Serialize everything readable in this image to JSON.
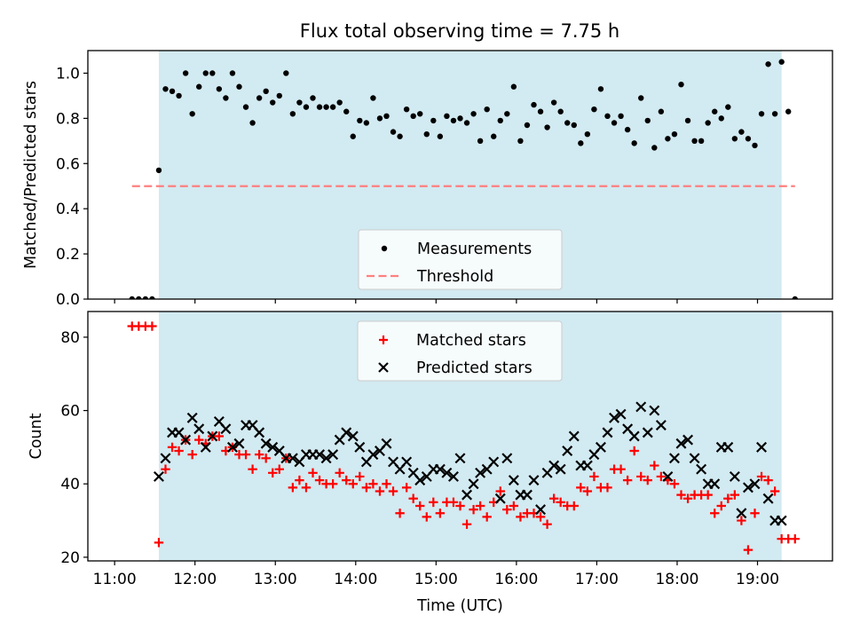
{
  "figure": {
    "title": "Flux total observing time = 7.75 h"
  },
  "colors": {
    "observing_band": "#add8e6",
    "measurement": "#000000",
    "threshold": "#ff7f7f",
    "matched": "#ff0000",
    "predicted": "#000000"
  },
  "chart_data": [
    {
      "type": "scatter",
      "name": "ratio-panel",
      "ylabel": "Matched/Predicted stars",
      "xlabel": "",
      "ylim": [
        0,
        1.1
      ],
      "yticks": [
        0.0,
        0.2,
        0.4,
        0.6,
        0.8,
        1.0
      ],
      "ytick_labels": [
        "0.0",
        "0.2",
        "0.4",
        "0.6",
        "0.8",
        "1.0"
      ],
      "xticks_hours": [
        11,
        12,
        13,
        14,
        15,
        16,
        17,
        18,
        19
      ],
      "observing_band": [
        "11:33",
        "19:18"
      ],
      "threshold": 0.5,
      "threshold_range": [
        "11:13",
        "19:28"
      ],
      "legend": {
        "placement": "lower center",
        "entries": [
          "Measurements",
          "Threshold"
        ]
      },
      "series": [
        {
          "name": "Measurements",
          "x": [
            "11:13",
            "11:18",
            "11:23",
            "11:28",
            "11:33",
            "11:38",
            "11:43",
            "11:48",
            "11:53",
            "11:58",
            "12:03",
            "12:08",
            "12:13",
            "12:18",
            "12:23",
            "12:28",
            "12:33",
            "12:38",
            "12:43",
            "12:48",
            "12:53",
            "12:58",
            "13:03",
            "13:08",
            "13:13",
            "13:18",
            "13:23",
            "13:28",
            "13:33",
            "13:38",
            "13:43",
            "13:48",
            "13:53",
            "13:58",
            "14:03",
            "14:08",
            "14:13",
            "14:18",
            "14:23",
            "14:28",
            "14:33",
            "14:38",
            "14:43",
            "14:48",
            "14:53",
            "14:58",
            "15:03",
            "15:08",
            "15:13",
            "15:18",
            "15:23",
            "15:28",
            "15:33",
            "15:38",
            "15:43",
            "15:48",
            "15:53",
            "15:58",
            "16:03",
            "16:08",
            "16:13",
            "16:18",
            "16:23",
            "16:28",
            "16:33",
            "16:38",
            "16:43",
            "16:48",
            "16:53",
            "16:58",
            "17:03",
            "17:08",
            "17:13",
            "17:18",
            "17:23",
            "17:28",
            "17:33",
            "17:38",
            "17:43",
            "17:48",
            "17:53",
            "17:58",
            "18:03",
            "18:08",
            "18:13",
            "18:18",
            "18:23",
            "18:28",
            "18:33",
            "18:38",
            "18:43",
            "18:48",
            "18:53",
            "18:58",
            "19:03",
            "19:08",
            "19:13",
            "19:18",
            "19:23",
            "19:28"
          ],
          "values": [
            0,
            0,
            0,
            0,
            0.57,
            0.93,
            0.92,
            0.9,
            1.0,
            0.82,
            0.94,
            1.0,
            1.0,
            0.93,
            0.89,
            1.0,
            0.94,
            0.85,
            0.78,
            0.89,
            0.92,
            0.87,
            0.9,
            1.0,
            0.82,
            0.87,
            0.85,
            0.89,
            0.85,
            0.85,
            0.85,
            0.87,
            0.83,
            0.72,
            0.79,
            0.78,
            0.89,
            0.8,
            0.81,
            0.74,
            0.72,
            0.84,
            0.81,
            0.82,
            0.73,
            0.79,
            0.72,
            0.81,
            0.79,
            0.8,
            0.78,
            0.82,
            0.7,
            0.84,
            0.72,
            0.79,
            0.82,
            0.94,
            0.7,
            0.77,
            0.86,
            0.83,
            0.76,
            0.87,
            0.83,
            0.78,
            0.77,
            0.69,
            0.73,
            0.84,
            0.93,
            0.81,
            0.78,
            0.81,
            0.75,
            0.69,
            0.89,
            0.79,
            0.67,
            0.83,
            0.71,
            0.73,
            0.95,
            0.79,
            0.7,
            0.7,
            0.78,
            0.83,
            0.8,
            0.85,
            0.71,
            0.74,
            0.71,
            0.68,
            0.82,
            1.04,
            0.82,
            1.05,
            0.83,
            0
          ]
        }
      ]
    },
    {
      "type": "scatter",
      "name": "count-panel",
      "ylabel": "Count",
      "xlabel": "Time (UTC)",
      "ylim": [
        19,
        87
      ],
      "yticks": [
        20,
        40,
        60,
        80
      ],
      "ytick_labels": [
        "20",
        "40",
        "60",
        "80"
      ],
      "xticks_hours": [
        11,
        12,
        13,
        14,
        15,
        16,
        17,
        18,
        19
      ],
      "xtick_labels": [
        "11:00",
        "12:00",
        "13:00",
        "14:00",
        "15:00",
        "16:00",
        "17:00",
        "18:00",
        "19:00"
      ],
      "observing_band": [
        "11:33",
        "19:18"
      ],
      "legend": {
        "placement": "upper center",
        "entries": [
          "Matched stars",
          "Predicted stars"
        ]
      },
      "series": [
        {
          "name": "Matched stars",
          "marker": "plus",
          "x": [
            "11:13",
            "11:18",
            "11:23",
            "11:28",
            "11:33",
            "11:38",
            "11:43",
            "11:48",
            "11:53",
            "11:58",
            "12:03",
            "12:08",
            "12:13",
            "12:18",
            "12:23",
            "12:28",
            "12:33",
            "12:38",
            "12:43",
            "12:48",
            "12:53",
            "12:58",
            "13:03",
            "13:08",
            "13:13",
            "13:18",
            "13:23",
            "13:28",
            "13:33",
            "13:38",
            "13:43",
            "13:48",
            "13:53",
            "13:58",
            "14:03",
            "14:08",
            "14:13",
            "14:18",
            "14:23",
            "14:28",
            "14:33",
            "14:38",
            "14:43",
            "14:48",
            "14:53",
            "14:58",
            "15:03",
            "15:08",
            "15:13",
            "15:18",
            "15:23",
            "15:28",
            "15:33",
            "15:38",
            "15:43",
            "15:48",
            "15:53",
            "15:58",
            "16:03",
            "16:08",
            "16:13",
            "16:18",
            "16:23",
            "16:28",
            "16:33",
            "16:38",
            "16:43",
            "16:48",
            "16:53",
            "16:58",
            "17:03",
            "17:08",
            "17:13",
            "17:18",
            "17:23",
            "17:28",
            "17:33",
            "17:38",
            "17:43",
            "17:48",
            "17:53",
            "17:58",
            "18:03",
            "18:08",
            "18:13",
            "18:18",
            "18:23",
            "18:28",
            "18:33",
            "18:38",
            "18:43",
            "18:48",
            "18:53",
            "18:58",
            "19:03",
            "19:08",
            "19:13",
            "19:18",
            "19:23",
            "19:28"
          ],
          "values": [
            83,
            83,
            83,
            83,
            24,
            44,
            50,
            49,
            52,
            48,
            52,
            51,
            53,
            53,
            49,
            50,
            48,
            48,
            44,
            48,
            47,
            43,
            44,
            47,
            39,
            41,
            39,
            43,
            41,
            40,
            40,
            43,
            41,
            40,
            42,
            39,
            40,
            38,
            40,
            38,
            32,
            39,
            36,
            34,
            31,
            35,
            32,
            35,
            35,
            34,
            29,
            33,
            34,
            31,
            35,
            38,
            33,
            34,
            31,
            32,
            32,
            31,
            29,
            36,
            35,
            34,
            34,
            39,
            38,
            42,
            39,
            39,
            44,
            44,
            41,
            49,
            42,
            41,
            45,
            42,
            41,
            40,
            37,
            36,
            37,
            37,
            37,
            32,
            34,
            36,
            37,
            30,
            22,
            32,
            42,
            41,
            38,
            25,
            25,
            25
          ]
        },
        {
          "name": "Predicted stars",
          "marker": "x",
          "x": [
            "11:33",
            "11:38",
            "11:43",
            "11:48",
            "11:53",
            "11:58",
            "12:03",
            "12:08",
            "12:13",
            "12:18",
            "12:23",
            "12:28",
            "12:33",
            "12:38",
            "12:43",
            "12:48",
            "12:53",
            "12:58",
            "13:03",
            "13:08",
            "13:13",
            "13:18",
            "13:23",
            "13:28",
            "13:33",
            "13:38",
            "13:43",
            "13:48",
            "13:53",
            "13:58",
            "14:03",
            "14:08",
            "14:13",
            "14:18",
            "14:23",
            "14:28",
            "14:33",
            "14:38",
            "14:43",
            "14:48",
            "14:53",
            "14:58",
            "15:03",
            "15:08",
            "15:13",
            "15:18",
            "15:23",
            "15:28",
            "15:33",
            "15:38",
            "15:43",
            "15:48",
            "15:53",
            "15:58",
            "16:03",
            "16:08",
            "16:13",
            "16:18",
            "16:23",
            "16:28",
            "16:33",
            "16:38",
            "16:43",
            "16:48",
            "16:53",
            "16:58",
            "17:03",
            "17:08",
            "17:13",
            "17:18",
            "17:23",
            "17:28",
            "17:33",
            "17:38",
            "17:43",
            "17:48",
            "17:53",
            "17:58",
            "18:03",
            "18:08",
            "18:13",
            "18:18",
            "18:23",
            "18:28",
            "18:33",
            "18:38",
            "18:43",
            "18:48",
            "18:53",
            "18:58",
            "19:03",
            "19:08",
            "19:13",
            "19:18"
          ],
          "values": [
            42,
            47,
            54,
            54,
            52,
            58,
            55,
            50,
            53,
            57,
            55,
            50,
            51,
            56,
            56,
            54,
            51,
            50,
            49,
            47,
            47,
            46,
            48,
            48,
            48,
            47,
            48,
            52,
            54,
            53,
            50,
            46,
            48,
            49,
            51,
            46,
            44,
            46,
            43,
            41,
            42,
            44,
            44,
            43,
            42,
            47,
            37,
            40,
            43,
            44,
            46,
            36,
            47,
            41,
            37,
            37,
            41,
            33,
            43,
            45,
            44,
            49,
            53,
            45,
            45,
            48,
            50,
            54,
            58,
            59,
            55,
            53,
            61,
            54,
            60,
            56,
            42,
            47,
            51,
            52,
            47,
            44,
            40,
            40,
            50,
            50,
            42,
            32,
            39,
            40,
            50,
            36,
            30,
            30
          ]
        }
      ]
    }
  ]
}
